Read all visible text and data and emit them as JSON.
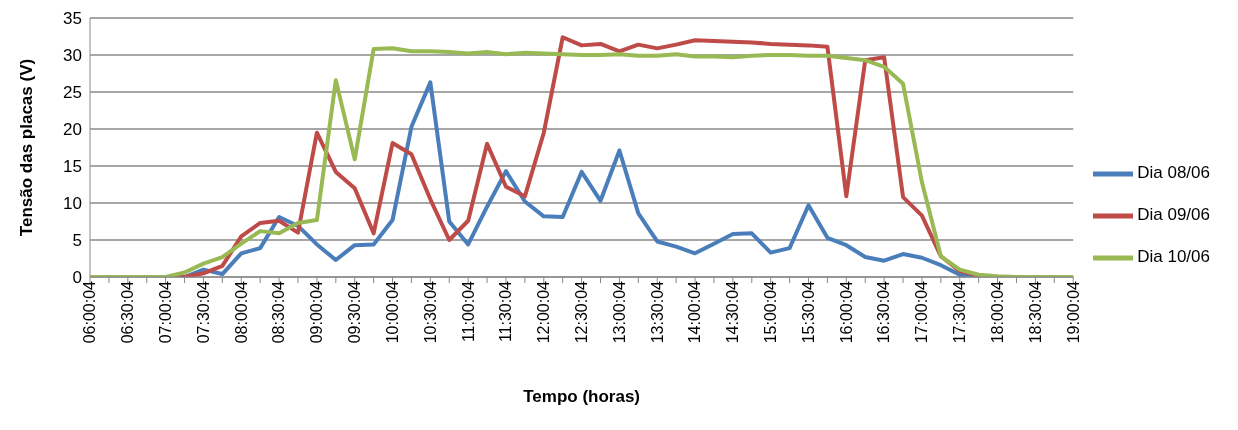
{
  "chart_data": {
    "type": "line",
    "xlabel": "Tempo (horas)",
    "ylabel": "Tensão das placas (V)",
    "categories": [
      "06:00:04",
      null,
      "06:30:04",
      null,
      "07:00:04",
      null,
      "07:30:04",
      null,
      "08:00:04",
      null,
      "08:30:04",
      null,
      "09:00:04",
      null,
      "09:30:04",
      null,
      "10:00:04",
      null,
      "10:30:04",
      null,
      "11:00:04",
      null,
      "11:30:04",
      null,
      "12:00:04",
      null,
      "12:30:04",
      null,
      "13:00:04",
      null,
      "13:30:04",
      null,
      "14:00:04",
      null,
      "14:30:04",
      null,
      "15:00:04",
      null,
      "15:30:04",
      null,
      "16:00:04",
      null,
      "16:30:04",
      null,
      "17:00:04",
      null,
      "17:30:04",
      null,
      "18:00:04",
      null,
      "18:30:04",
      null,
      "19:00:04"
    ],
    "series": [
      {
        "name": "Dia 08/06",
        "color": "#4a7ebb",
        "values": [
          null,
          null,
          null,
          null,
          0,
          0,
          1,
          0.4,
          3.2,
          3.9,
          8.1,
          6.9,
          4.4,
          2.3,
          4.3,
          4.4,
          7.7,
          20.3,
          26.3,
          7.5,
          4.4,
          9.5,
          14.3,
          10.2,
          8.2,
          8.1,
          14.2,
          10.3,
          17.1,
          8.6,
          4.8,
          4.1,
          3.2,
          4.5,
          5.8,
          5.9,
          3.3,
          3.9,
          9.7,
          5.3,
          4.3,
          2.7,
          2.2,
          3.1,
          2.6,
          1.6,
          0.3,
          0,
          0,
          null,
          null,
          null,
          null
        ]
      },
      {
        "name": "Dia 09/06",
        "color": "#be4b48",
        "values": [
          null,
          null,
          null,
          0,
          0,
          0,
          0.5,
          1.5,
          5.5,
          7.3,
          7.6,
          6.0,
          19.5,
          14.2,
          12.0,
          5.9,
          18.1,
          16.6,
          10.5,
          5.0,
          7.6,
          18.0,
          12.2,
          10.9,
          19.5,
          32.4,
          31.3,
          31.5,
          30.5,
          31.4,
          30.9,
          31.4,
          32.0,
          31.9,
          31.8,
          31.7,
          31.5,
          31.4,
          31.3,
          31.1,
          10.9,
          29.3,
          29.7,
          10.8,
          8.3,
          2.8,
          0.8,
          0.2,
          0,
          null,
          null,
          null,
          null
        ]
      },
      {
        "name": "Dia 10/06",
        "color": "#98b954",
        "values": [
          0,
          0,
          0,
          0,
          0,
          0.6,
          1.8,
          2.7,
          4.5,
          6.2,
          5.9,
          7.3,
          7.7,
          26.6,
          15.9,
          30.8,
          30.9,
          30.5,
          30.5,
          30.4,
          30.2,
          30.4,
          30.1,
          30.3,
          30.2,
          30.1,
          30.0,
          30.0,
          30.1,
          29.9,
          29.9,
          30.1,
          29.8,
          29.8,
          29.7,
          29.9,
          30.0,
          30.0,
          29.9,
          29.9,
          29.6,
          29.3,
          28.4,
          26.1,
          12.8,
          2.8,
          1.0,
          0.3,
          0.1,
          0,
          0,
          0,
          0
        ]
      }
    ],
    "ylim": [
      0,
      35
    ],
    "yticks": [
      0,
      5,
      10,
      15,
      20,
      25,
      30,
      35
    ],
    "grid": "y",
    "legend": "right",
    "marker": "none",
    "line_style": "solid"
  }
}
